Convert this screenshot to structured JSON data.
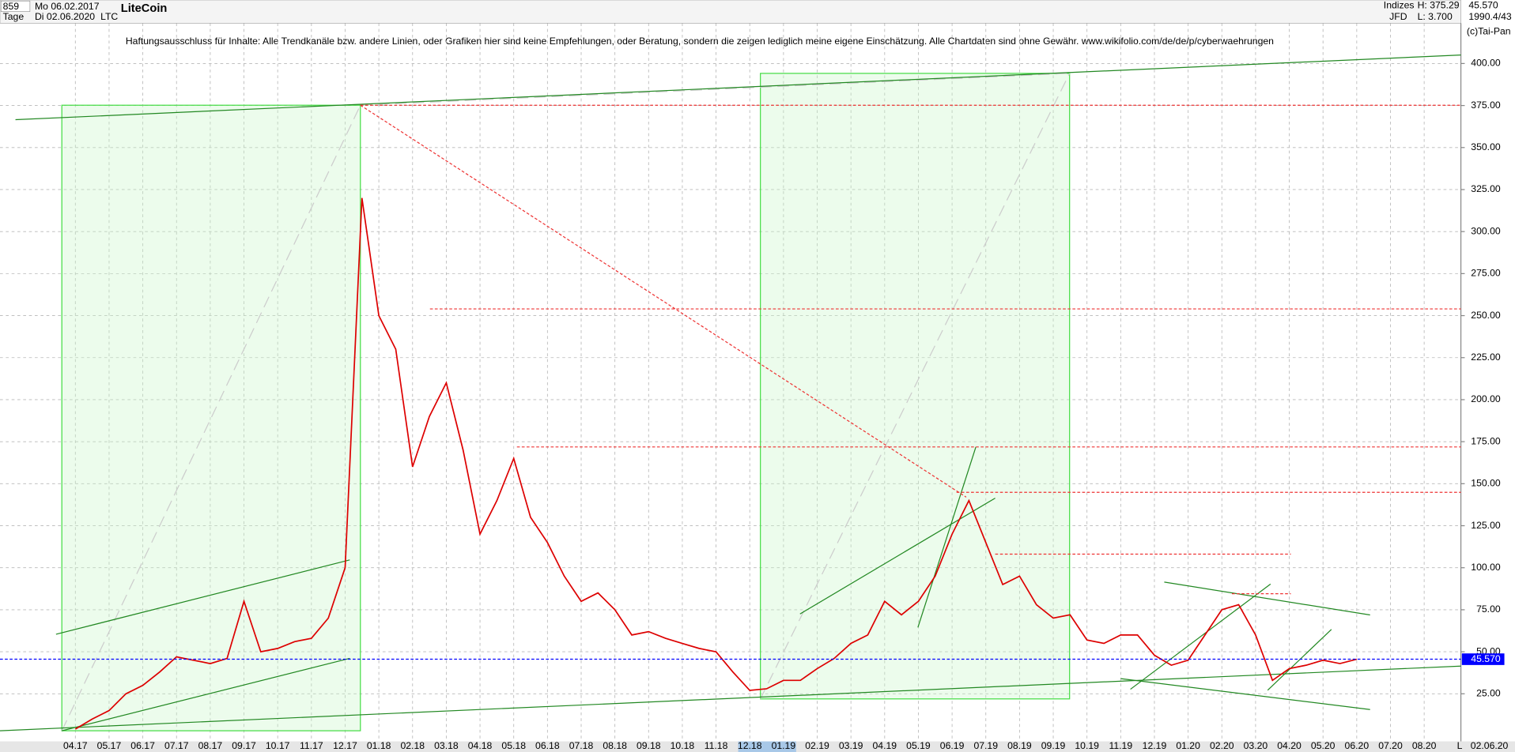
{
  "header": {
    "count": "859",
    "start": "Mo 06.02.2017",
    "period": "Tage",
    "end": "Di 02.06.2020",
    "symbol": "LTC",
    "category": "Indizes",
    "broker": "JFD",
    "high": "H: 375.29",
    "low": "L: 3.700",
    "last": "45.570",
    "info": "1990.4/43",
    "copyright": "(c)Tai-Pan",
    "footer_date": "02.06.20",
    "footer_flag": "L"
  },
  "chart_data": {
    "type": "line",
    "title": "LiteCoin",
    "subtitle": "Haftungsausschluss für Inhalte: Alle Trendkanäle bzw. andere Linien, oder Grafiken hier sind keine Empfehlungen, oder Beratung, sondern die zeigen lediglich meine eigene Einschätzung. Alle Chartdaten sind ohne Gewähr.  www.wikifolio.com/de/de/p/cyberwaehrungen",
    "categories": [
      "04.17",
      null,
      "05.17",
      null,
      "06.17",
      null,
      "07.17",
      null,
      "08.17",
      null,
      "09.17",
      null,
      "10.17",
      null,
      "11.17",
      null,
      "12.17",
      null,
      "01.18",
      null,
      "02.18",
      null,
      "03.18",
      null,
      "04.18",
      null,
      "05.18",
      null,
      "06.18",
      null,
      "07.18",
      null,
      "08.18",
      null,
      "09.18",
      null,
      "10.18",
      null,
      "11.18",
      null,
      "12.18",
      null,
      "01.19",
      null,
      "02.19",
      null,
      "03.19",
      null,
      "04.19",
      null,
      "05.19",
      null,
      "06.19",
      null,
      "07.19",
      null,
      "08.19",
      null,
      "09.19",
      null,
      "10.19",
      null,
      "11.19",
      null,
      "12.19",
      null,
      "01.20",
      null,
      "02.20",
      null,
      "03.20",
      null,
      "04.20",
      null,
      "05.20",
      null,
      "06.20",
      null,
      "07.20",
      null,
      "08.20",
      null
    ],
    "series": [
      {
        "name": "LiteCoin",
        "color": "#dd0000",
        "values": [
          4,
          10,
          15,
          25,
          30,
          38,
          47,
          45,
          43,
          46,
          80,
          50,
          52,
          56,
          58,
          70,
          100,
          320,
          250,
          230,
          160,
          190,
          210,
          170,
          120,
          140,
          165,
          130,
          115,
          95,
          80,
          85,
          75,
          60,
          62,
          58,
          55,
          52,
          50,
          38,
          27,
          28,
          33,
          33,
          40,
          46,
          55,
          60,
          80,
          72,
          80,
          95,
          120,
          140,
          115,
          90,
          95,
          78,
          70,
          72,
          57,
          55,
          60,
          60,
          48,
          42,
          45,
          60,
          75,
          78,
          60,
          33,
          40,
          42,
          45,
          43,
          45.57,
          null,
          null,
          null,
          null,
          null
        ]
      }
    ],
    "current_price": {
      "value": 45.57,
      "label": "45.570",
      "color": "#0000ff"
    },
    "ylim": [
      3,
      424
    ],
    "yticks": [
      {
        "value": 25,
        "label": "25.00"
      },
      {
        "value": 50,
        "label": "50.00"
      },
      {
        "value": 75,
        "label": "75.00"
      },
      {
        "value": 100,
        "label": "100.00"
      },
      {
        "value": 125,
        "label": "125.00"
      },
      {
        "value": 150,
        "label": "150.00"
      },
      {
        "value": 175,
        "label": "175.00"
      },
      {
        "value": 200,
        "label": "200.00"
      },
      {
        "value": 225,
        "label": "225.00"
      },
      {
        "value": 250,
        "label": "250.00"
      },
      {
        "value": 275,
        "label": "275.00"
      },
      {
        "value": 300,
        "label": "300.00"
      },
      {
        "value": 325,
        "label": "325.00"
      },
      {
        "value": 350,
        "label": "350.00"
      },
      {
        "value": 375,
        "label": "375.00"
      },
      {
        "value": 400,
        "label": "400.00"
      }
    ],
    "grid": true
  }
}
